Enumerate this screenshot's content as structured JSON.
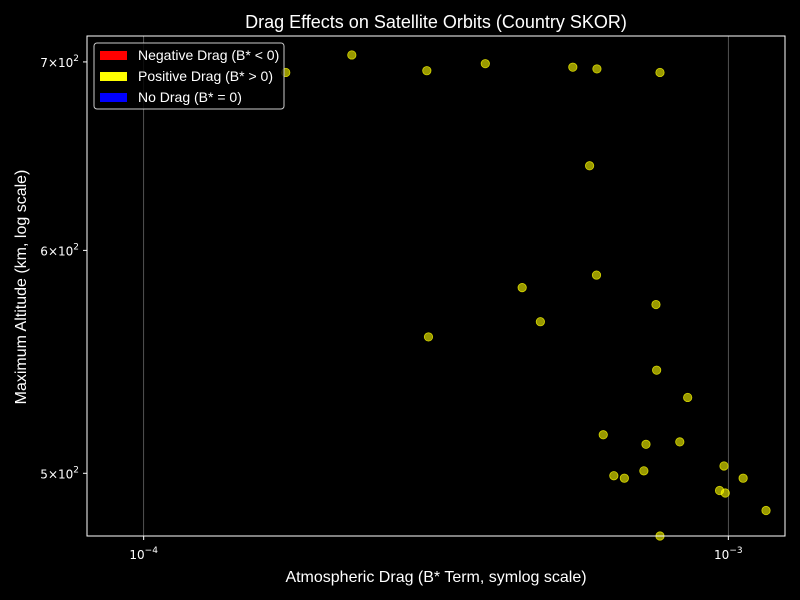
{
  "chart_data": {
    "type": "scatter",
    "title": "Drag Effects on Satellite Orbits (Country SKOR)",
    "xlabel": "Atmospheric Drag (B* Term, symlog scale)",
    "ylabel": "Maximum Altitude (km, log scale)",
    "x_scale": "symlog",
    "y_scale": "log",
    "xlim": [
      8e-05,
      0.00125
    ],
    "ylim": [
      475,
      715
    ],
    "x_ticks": [
      {
        "value": 0.0001,
        "base": "10",
        "exp": "−4"
      },
      {
        "value": 0.001,
        "base": "10",
        "exp": "−3"
      }
    ],
    "y_ticks": [
      {
        "value": 500,
        "mant": "5",
        "base": "×10",
        "exp": "2"
      },
      {
        "value": 600,
        "mant": "6",
        "base": "×10",
        "exp": "2"
      },
      {
        "value": 700,
        "mant": "7",
        "base": "×10",
        "exp": "2"
      }
    ],
    "grid": "vertical major",
    "legend_position": "top-left",
    "legend": [
      {
        "label": "Negative Drag (B* < 0)",
        "color": "#ff0000"
      },
      {
        "label": "Positive Drag (B* > 0)",
        "color": "#ffff00"
      },
      {
        "label": "No Drag (B* = 0)",
        "color": "#0000ff"
      }
    ],
    "series": [
      {
        "color": "#ffff00",
        "points": [
          [
            0.000175,
            694
          ],
          [
            0.000227,
            704
          ],
          [
            0.000305,
            695
          ],
          [
            0.000384,
            699
          ],
          [
            0.000542,
            697
          ],
          [
            0.000596,
            696
          ],
          [
            0.000764,
            694
          ],
          [
            0.000579,
            643
          ],
          [
            0.000444,
            582
          ],
          [
            0.000595,
            588
          ],
          [
            0.000752,
            574
          ],
          [
            0.000307,
            559
          ],
          [
            0.000477,
            566
          ],
          [
            0.000754,
            544
          ],
          [
            0.000852,
            532
          ],
          [
            0.000611,
            516
          ],
          [
            0.000723,
            512
          ],
          [
            0.000826,
            513
          ],
          [
            0.000637,
            499
          ],
          [
            0.000664,
            498
          ],
          [
            0.000717,
            501
          ],
          [
            0.000983,
            503
          ],
          [
            0.00106,
            498
          ],
          [
            0.000966,
            493
          ],
          [
            0.000988,
            492
          ],
          [
            0.00116,
            485
          ],
          [
            0.000764,
            475
          ]
        ]
      }
    ]
  }
}
